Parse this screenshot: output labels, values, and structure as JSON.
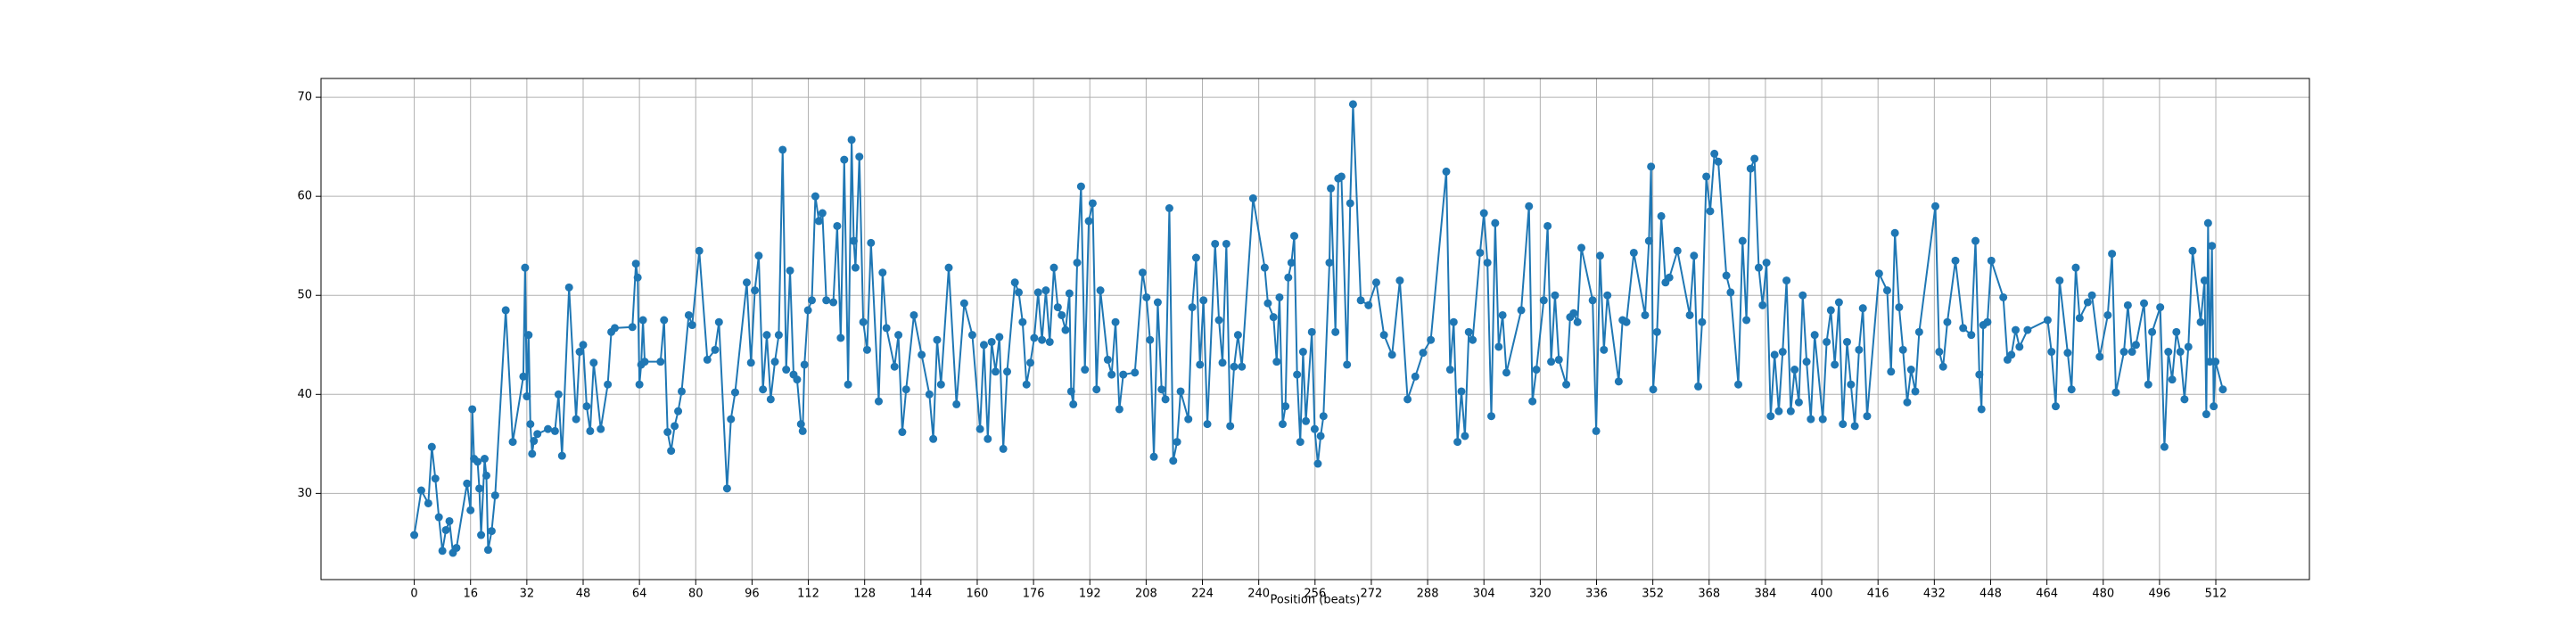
{
  "chart_data": {
    "type": "line",
    "x_label": "Position (beats)",
    "color": "#1f77b4",
    "grid": true,
    "xlim": [
      -26.5,
      538.6
    ],
    "ylim": [
      21.3,
      71.9
    ],
    "xticks": [
      0,
      16,
      32,
      48,
      64,
      80,
      96,
      112,
      128,
      144,
      160,
      176,
      192,
      208,
      224,
      240,
      256,
      272,
      288,
      304,
      320,
      336,
      352,
      368,
      384,
      400,
      416,
      432,
      448,
      464,
      480,
      496,
      512
    ],
    "yticks": [
      30,
      40,
      50,
      60,
      70
    ],
    "x": [
      0,
      2,
      4,
      5,
      6,
      7,
      8,
      9,
      10,
      11,
      12,
      15,
      16,
      16.5,
      17,
      18,
      18.5,
      19,
      20,
      20.5,
      21,
      22,
      23,
      26,
      28,
      31,
      31.5,
      32,
      32.5,
      33,
      33.5,
      34,
      35,
      38,
      40,
      41,
      42,
      44,
      46,
      47,
      48,
      49,
      50,
      51,
      53,
      55,
      56,
      57,
      62,
      63,
      63.5,
      64,
      64.5,
      65,
      65.5,
      70,
      71,
      72,
      73,
      74,
      75,
      76,
      78,
      79,
      81,
      83.3,
      85.5,
      86.6,
      88.9,
      90,
      91.2,
      94.5,
      95.7,
      96.8,
      97.9,
      99.1,
      100.2,
      101.3,
      102.5,
      103.6,
      104.7,
      105.7,
      106.8,
      107.8,
      108.8,
      109.9,
      110.4,
      110.9,
      111.9,
      113,
      114,
      115,
      116,
      117.1,
      119.1,
      120.2,
      121.2,
      122.2,
      123.3,
      124.3,
      124.9,
      125.4,
      126.5,
      127.6,
      128.7,
      129.8,
      132,
      133.1,
      134.2,
      136.5,
      137.6,
      138.7,
      139.8,
      142,
      144.2,
      146.4,
      147.5,
      148.6,
      149.7,
      151.9,
      154.1,
      156.3,
      158.6,
      160.8,
      161.9,
      163,
      164.1,
      165.2,
      166.3,
      167.4,
      168.5,
      170.7,
      171.8,
      172.9,
      174,
      175.1,
      176.2,
      177.3,
      178.4,
      179.5,
      180.6,
      181.8,
      182.9,
      184,
      185.1,
      186.2,
      186.7,
      187.3,
      188.4,
      189.5,
      190.6,
      191.7,
      192.8,
      193.9,
      195,
      197.1,
      198.2,
      199.3,
      200.4,
      201.5,
      204.8,
      207,
      208.1,
      209.1,
      210.2,
      211.3,
      212.4,
      213.5,
      214.6,
      215.7,
      216.8,
      217.8,
      220,
      221.1,
      222.2,
      223.3,
      224.3,
      225.4,
      227.6,
      228.7,
      229.7,
      230.8,
      231.9,
      233,
      234.1,
      235.2,
      238.4,
      241.7,
      242.6,
      244.2,
      245.1,
      245.9,
      246.8,
      247.6,
      248.4,
      249.3,
      250.1,
      250.9,
      251.8,
      252.6,
      253.4,
      255.1,
      255.9,
      256.8,
      257.6,
      258.4,
      260.1,
      260.5,
      261.8,
      262.6,
      263.5,
      265.1,
      266,
      266.8,
      269,
      271.2,
      273.4,
      275.6,
      277.9,
      280.1,
      282.3,
      284.5,
      286.7,
      288.9,
      293.3,
      294.4,
      295.4,
      296.5,
      297.6,
      298.6,
      299.7,
      300.8,
      302.9,
      304,
      305,
      306.1,
      307.2,
      308.2,
      309.3,
      310.4,
      314.6,
      316.8,
      317.8,
      318.9,
      321,
      322.1,
      323.1,
      324.2,
      325.3,
      327.4,
      328.5,
      329.5,
      330.6,
      331.7,
      334.9,
      335.9,
      337,
      338.1,
      339.1,
      342.3,
      343.4,
      344.5,
      346.6,
      349.8,
      350.9,
      351.5,
      352.1,
      353.2,
      354.4,
      355.6,
      356.7,
      359,
      362.5,
      363.7,
      364.9,
      366,
      367.2,
      368.3,
      369.5,
      370.6,
      372.9,
      374.1,
      376.3,
      377.5,
      378.6,
      379.8,
      380.9,
      382.1,
      383.2,
      384.3,
      385.5,
      386.6,
      387.8,
      388.9,
      390,
      391.2,
      392.3,
      393.5,
      394.6,
      395.7,
      396.9,
      398,
      400.3,
      401.4,
      402.6,
      403.7,
      404.9,
      406,
      407.2,
      408.3,
      409.4,
      410.6,
      411.7,
      412.9,
      416.3,
      418.6,
      419.7,
      420.8,
      422,
      423.1,
      424.3,
      425.4,
      426.6,
      427.7,
      432.3,
      433.4,
      434.5,
      435.7,
      438,
      440.2,
      442.5,
      443.7,
      444.8,
      445.4,
      445.9,
      447.1,
      448.2,
      451.6,
      452.8,
      453.9,
      455.1,
      456.2,
      458.5,
      464.2,
      465.3,
      466.5,
      467.6,
      469.9,
      471,
      472.2,
      473.3,
      475.6,
      476.8,
      479,
      481.3,
      482.5,
      483.6,
      485.9,
      487,
      488.2,
      489.3,
      491.6,
      492.8,
      493.9,
      496.2,
      497.4,
      498.5,
      499.6,
      500.8,
      501.9,
      503.1,
      504.2,
      505.4,
      507.7,
      508.8,
      509.3,
      509.8,
      510.3,
      510.9,
      511.4,
      511.9,
      514
    ],
    "values": [
      25.8,
      30.3,
      29,
      34.7,
      31.5,
      27.6,
      24.2,
      26.3,
      27.2,
      24,
      24.5,
      31,
      28.3,
      38.5,
      33.5,
      33.2,
      30.5,
      25.8,
      33.5,
      31.8,
      24.3,
      26.2,
      29.8,
      48.5,
      35.2,
      41.8,
      52.8,
      39.8,
      46,
      37,
      34,
      35.3,
      36,
      36.5,
      36.3,
      40,
      33.8,
      50.8,
      37.5,
      44.3,
      45,
      38.8,
      36.3,
      43.2,
      36.5,
      41,
      46.3,
      46.7,
      46.8,
      53.2,
      51.8,
      41,
      43,
      47.5,
      43.3,
      43.3,
      47.5,
      36.2,
      34.3,
      36.8,
      38.3,
      40.3,
      48,
      47,
      54.5,
      43.5,
      44.5,
      47.3,
      30.5,
      37.5,
      40.2,
      51.3,
      43.2,
      50.5,
      54,
      40.5,
      46,
      39.5,
      43.3,
      46,
      64.7,
      42.5,
      52.5,
      42,
      41.5,
      37,
      36.3,
      43,
      48.5,
      49.5,
      60,
      57.5,
      58.3,
      49.5,
      49.3,
      57,
      45.7,
      63.7,
      41,
      65.7,
      55.5,
      52.8,
      64,
      47.3,
      44.5,
      55.3,
      39.3,
      52.3,
      46.7,
      42.8,
      46,
      36.2,
      40.5,
      48,
      44,
      40,
      35.5,
      45.5,
      41,
      52.8,
      39,
      49.2,
      46,
      36.5,
      45,
      35.5,
      45.3,
      42.3,
      45.8,
      34.5,
      42.3,
      51.3,
      50.3,
      47.3,
      41,
      43.2,
      45.7,
      50.3,
      45.5,
      50.5,
      45.3,
      52.8,
      48.8,
      48,
      46.5,
      50.2,
      40.3,
      39,
      53.3,
      61,
      42.5,
      57.5,
      59.3,
      40.5,
      50.5,
      43.5,
      42,
      47.3,
      38.5,
      42,
      42.2,
      52.3,
      49.8,
      45.5,
      33.7,
      49.3,
      40.5,
      39.5,
      58.8,
      33.3,
      35.2,
      40.3,
      37.5,
      48.8,
      53.8,
      43,
      49.5,
      37,
      55.2,
      47.5,
      43.2,
      55.2,
      36.8,
      42.8,
      46,
      42.8,
      59.8,
      52.8,
      49.2,
      47.8,
      43.3,
      49.8,
      37,
      38.8,
      51.8,
      53.3,
      56,
      42,
      35.2,
      44.3,
      37.3,
      46.3,
      36.5,
      33,
      35.8,
      37.8,
      53.3,
      60.8,
      46.3,
      61.8,
      62,
      43,
      59.3,
      69.3,
      49.5,
      49,
      51.3,
      46,
      44,
      51.5,
      39.5,
      41.8,
      44.2,
      45.5,
      62.5,
      42.5,
      47.3,
      35.2,
      40.3,
      35.8,
      46.3,
      45.5,
      54.3,
      58.3,
      53.3,
      37.8,
      57.3,
      44.8,
      48,
      42.2,
      48.5,
      59,
      39.3,
      42.5,
      49.5,
      57,
      43.3,
      50,
      43.5,
      41,
      47.8,
      48.2,
      47.3,
      54.8,
      49.5,
      36.3,
      54,
      44.5,
      50,
      41.3,
      47.5,
      47.3,
      54.3,
      48,
      55.5,
      63,
      40.5,
      46.3,
      58,
      51.3,
      51.8,
      54.5,
      48,
      54,
      40.8,
      47.3,
      62,
      58.5,
      64.3,
      63.5,
      52,
      50.3,
      41,
      55.5,
      47.5,
      62.8,
      63.8,
      52.8,
      49,
      53.3,
      37.8,
      44,
      38.3,
      44.3,
      51.5,
      38.3,
      42.5,
      39.2,
      50,
      43.3,
      37.5,
      46,
      37.5,
      45.3,
      48.5,
      43,
      49.3,
      37,
      45.3,
      41,
      36.8,
      44.5,
      48.7,
      37.8,
      52.2,
      50.5,
      42.3,
      56.3,
      48.8,
      44.5,
      39.2,
      42.5,
      40.3,
      46.3,
      59,
      44.3,
      42.8,
      47.3,
      53.5,
      46.7,
      46,
      55.5,
      42,
      38.5,
      47,
      47.3,
      53.5,
      49.8,
      43.5,
      44,
      46.5,
      44.8,
      46.5,
      47.5,
      44.3,
      38.8,
      51.5,
      44.2,
      40.5,
      52.8,
      47.7,
      49.3,
      50,
      43.8,
      48,
      54.2,
      40.2,
      44.3,
      49,
      44.3,
      45,
      49.2,
      41,
      46.3,
      48.8,
      34.7,
      44.3,
      41.5,
      46.3,
      44.3,
      39.5,
      44.8,
      54.5,
      47.3,
      51.5,
      38,
      57.3,
      43.3,
      55,
      38.8,
      43.3,
      40.5
    ]
  }
}
